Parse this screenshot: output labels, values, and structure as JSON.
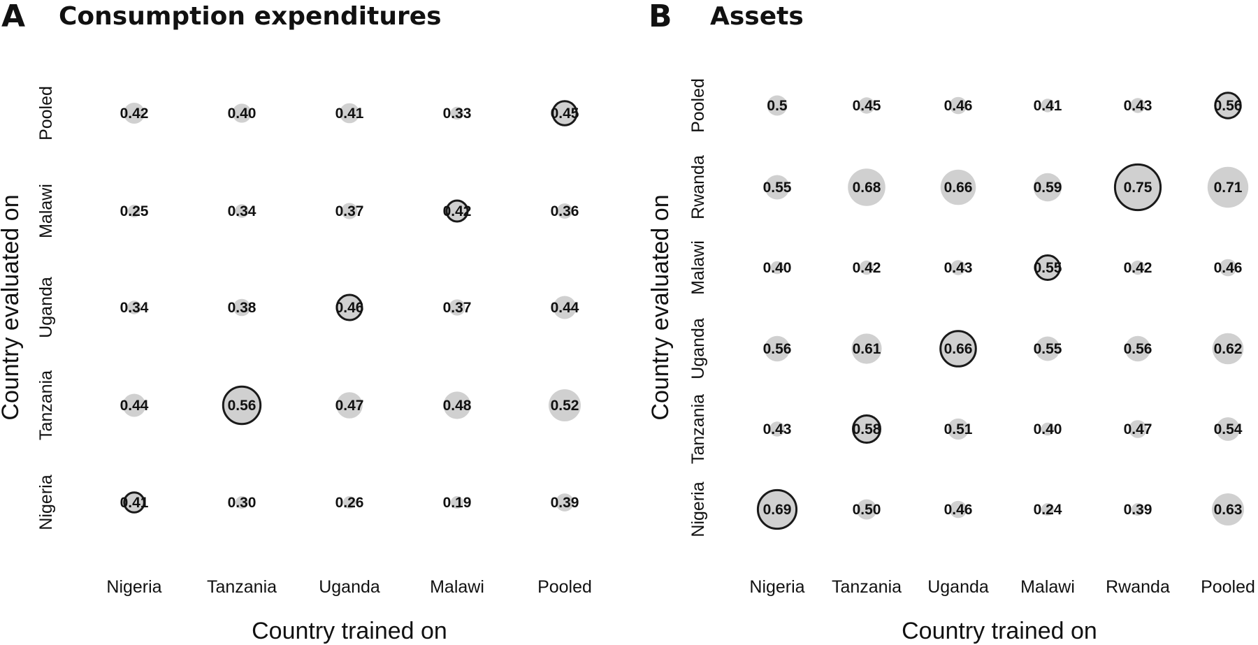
{
  "chart_data": [
    {
      "panel": "A",
      "title": "Consumption expenditures",
      "type": "scatter",
      "xlabel": "Country trained on",
      "ylabel": "Country evaluated on",
      "x_categories": [
        "Nigeria",
        "Tanzania",
        "Uganda",
        "Malawi",
        "Pooled"
      ],
      "y_categories": [
        "Nigeria",
        "Tanzania",
        "Uganda",
        "Malawi",
        "Pooled"
      ],
      "values": [
        [
          0.41,
          0.3,
          0.26,
          0.19,
          0.39
        ],
        [
          0.44,
          0.56,
          0.47,
          0.48,
          0.52
        ],
        [
          0.34,
          0.38,
          0.46,
          0.37,
          0.44
        ],
        [
          0.25,
          0.34,
          0.37,
          0.42,
          0.36
        ],
        [
          0.42,
          0.4,
          0.41,
          0.33,
          0.45
        ]
      ],
      "labels": [
        [
          "0.41",
          "0.30",
          "0.26",
          "0.19",
          "0.39"
        ],
        [
          "0.44",
          "0.56",
          "0.47",
          "0.48",
          "0.52"
        ],
        [
          "0.34",
          "0.38",
          "0.46",
          "0.37",
          "0.44"
        ],
        [
          "0.25",
          "0.34",
          "0.37",
          "0.42",
          "0.36"
        ],
        [
          "0.42",
          "0.40",
          "0.41",
          "0.33",
          "0.45"
        ]
      ]
    },
    {
      "panel": "B",
      "title": "Assets",
      "type": "scatter",
      "xlabel": "Country trained on",
      "ylabel": "Country evaluated on",
      "x_categories": [
        "Nigeria",
        "Tanzania",
        "Uganda",
        "Malawi",
        "Rwanda",
        "Pooled"
      ],
      "y_categories": [
        "Nigeria",
        "Tanzania",
        "Uganda",
        "Malawi",
        "Rwanda",
        "Pooled"
      ],
      "values": [
        [
          0.69,
          0.5,
          0.46,
          0.24,
          0.39,
          0.63
        ],
        [
          0.43,
          0.58,
          0.51,
          0.4,
          0.47,
          0.54
        ],
        [
          0.56,
          0.61,
          0.66,
          0.55,
          0.56,
          0.62
        ],
        [
          0.4,
          0.42,
          0.43,
          0.55,
          0.42,
          0.46
        ],
        [
          0.55,
          0.68,
          0.66,
          0.59,
          0.75,
          0.71
        ],
        [
          0.5,
          0.45,
          0.46,
          0.41,
          0.43,
          0.56
        ]
      ],
      "labels": [
        [
          "0.69",
          "0.50",
          "0.46",
          "0.24",
          "0.39",
          "0.63"
        ],
        [
          "0.43",
          "0.58",
          "0.51",
          "0.40",
          "0.47",
          "0.54"
        ],
        [
          "0.56",
          "0.61",
          "0.66",
          "0.55",
          "0.56",
          "0.62"
        ],
        [
          "0.40",
          "0.42",
          "0.43",
          "0.55",
          "0.42",
          "0.46"
        ],
        [
          "0.55",
          "0.68",
          "0.66",
          "0.59",
          "0.75",
          "0.71"
        ],
        [
          "0.5",
          "0.45",
          "0.46",
          "0.41",
          "0.43",
          "0.56"
        ]
      ]
    }
  ]
}
